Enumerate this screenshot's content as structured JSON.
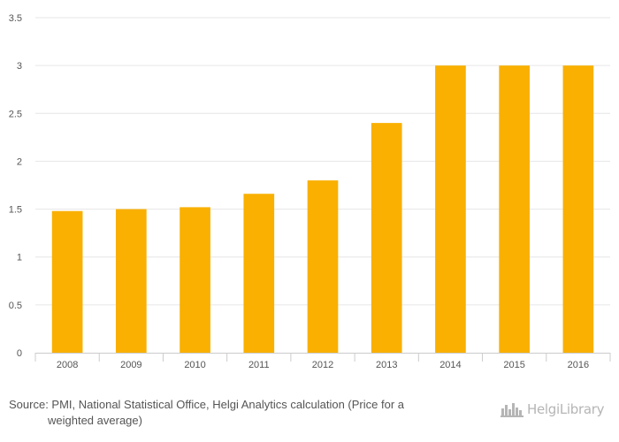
{
  "chart_data": {
    "type": "bar",
    "categories": [
      "2008",
      "2009",
      "2010",
      "2011",
      "2012",
      "2013",
      "2014",
      "2015",
      "2016"
    ],
    "values": [
      1.48,
      1.5,
      1.52,
      1.66,
      1.8,
      2.4,
      3.0,
      3.0,
      3.0
    ],
    "yticks": [
      "0",
      "0.5",
      "1",
      "1.5",
      "2",
      "2.5",
      "3",
      "3.5"
    ],
    "ylim": [
      0,
      3.5
    ],
    "grid": true,
    "bar_color": "#F9B000"
  },
  "footer": {
    "source_line1": "Source: PMI, National Statistical Office, Helgi Analytics calculation (Price for a",
    "source_line2": "weighted average)"
  },
  "logo": {
    "text": "HelgiLibrary",
    "icon": "city-skyline-icon"
  }
}
